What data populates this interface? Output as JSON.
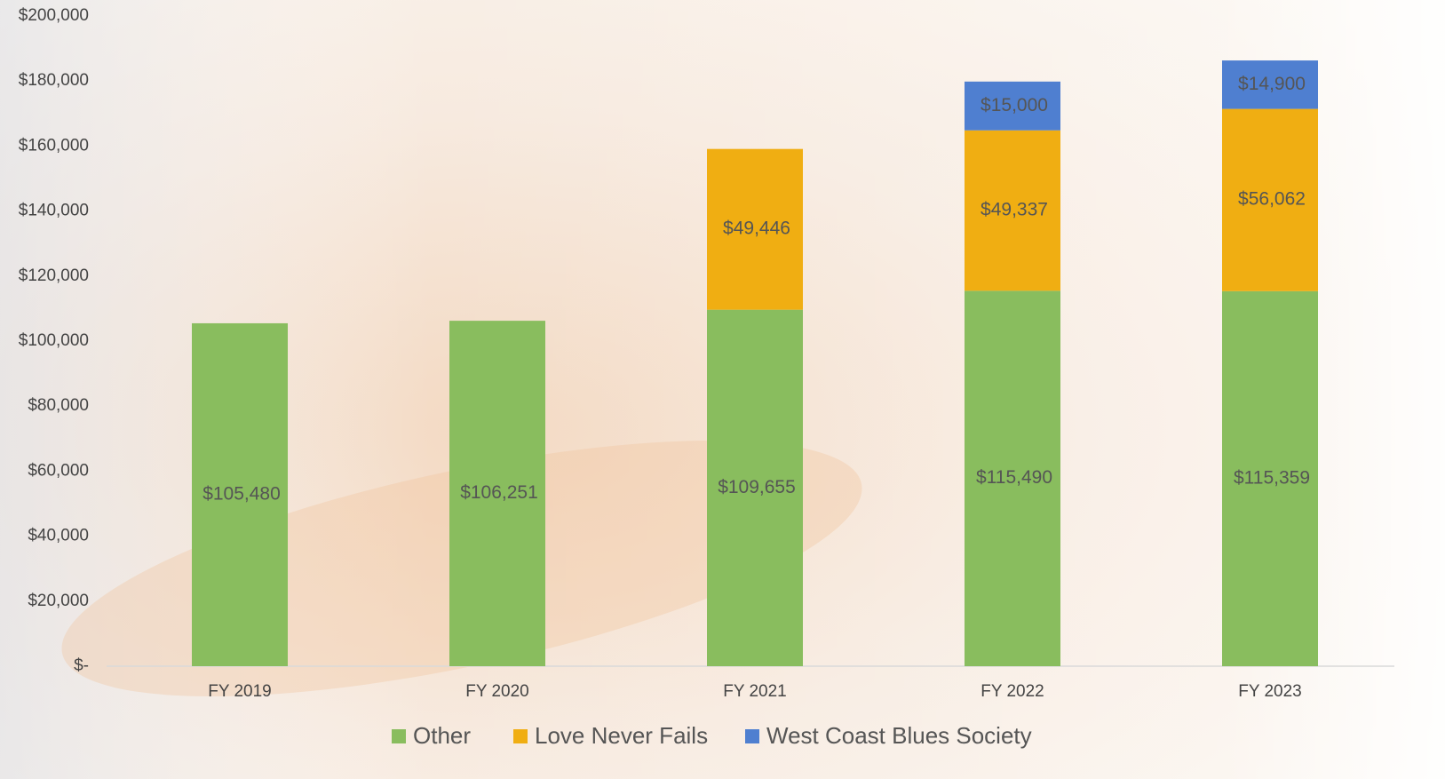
{
  "chart_data": {
    "type": "stacked_bar",
    "categories": [
      "FY 2019",
      "FY 2020",
      "FY 2021",
      "FY 2022",
      "FY 2023"
    ],
    "series": [
      {
        "name": "Other",
        "color": "#89bd5e",
        "values": [
          105480,
          106251,
          109655,
          115490,
          115359
        ],
        "value_labels": [
          "$105,480",
          "$106,251",
          "$109,655",
          "$115,490",
          "$115,359"
        ]
      },
      {
        "name": "Love Never Fails",
        "color": "#f0ae12",
        "values": [
          null,
          null,
          49446,
          49337,
          56062
        ],
        "value_labels": [
          null,
          null,
          "$49,446",
          "$49,337",
          "$56,062"
        ]
      },
      {
        "name": "West Coast Blues Society",
        "color": "#4f7fd0",
        "values": [
          null,
          null,
          null,
          15000,
          14900
        ],
        "value_labels": [
          null,
          null,
          null,
          "$15,000",
          "$14,900"
        ]
      }
    ],
    "ylim": [
      0,
      200000
    ],
    "yticks": [
      {
        "value": 0,
        "label": "$-"
      },
      {
        "value": 20000,
        "label": "$20,000"
      },
      {
        "value": 40000,
        "label": "$40,000"
      },
      {
        "value": 60000,
        "label": "$60,000"
      },
      {
        "value": 80000,
        "label": "$80,000"
      },
      {
        "value": 100000,
        "label": "$100,000"
      },
      {
        "value": 120000,
        "label": "$120,000"
      },
      {
        "value": 140000,
        "label": "$140,000"
      },
      {
        "value": 160000,
        "label": "$160,000"
      },
      {
        "value": 180000,
        "label": "$180,000"
      },
      {
        "value": 200000,
        "label": "$200,000"
      }
    ],
    "legend": "bottom"
  }
}
